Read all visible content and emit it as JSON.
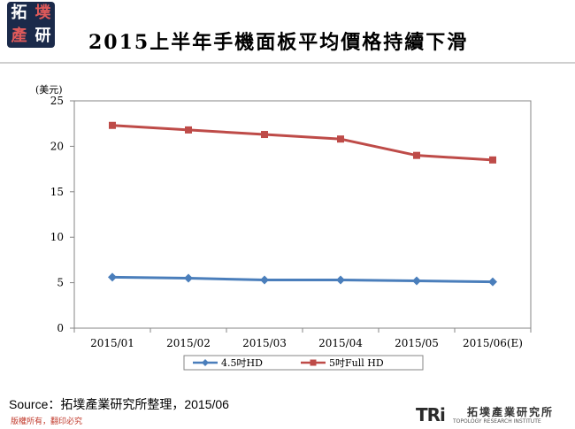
{
  "header": {
    "title": "2015上半年手機面板平均價格持續下滑",
    "logo_chars": [
      "拓",
      "墣",
      "產",
      "研"
    ]
  },
  "chart_data": {
    "type": "line",
    "title": "2015上半年手機面板平均價格持續下滑",
    "ylabel": "(美元)",
    "xlabel": "",
    "categories": [
      "2015/01",
      "2015/02",
      "2015/03",
      "2015/04",
      "2015/05",
      "2015/06(E)"
    ],
    "ylim": [
      0,
      25
    ],
    "yticks": [
      0,
      5,
      10,
      15,
      20,
      25
    ],
    "grid": false,
    "legend_position": "bottom",
    "series": [
      {
        "name": "4.5吋HD",
        "color": "#4a7ebb",
        "marker": "diamond",
        "values": [
          5.6,
          5.5,
          5.3,
          5.3,
          5.2,
          5.1
        ]
      },
      {
        "name": "5吋Full HD",
        "color": "#be4b48",
        "marker": "square",
        "values": [
          22.3,
          21.8,
          21.3,
          20.8,
          19.0,
          18.5
        ]
      }
    ]
  },
  "footer": {
    "source": "Source：拓墣產業研究所整理，2015/06",
    "copyright": "版權所有，翻印必究",
    "logo_mark": "TRi",
    "logo_cn": "拓墣產業研究所",
    "logo_en": "TOPOLOGY RESEARCH INSTITUTE"
  }
}
